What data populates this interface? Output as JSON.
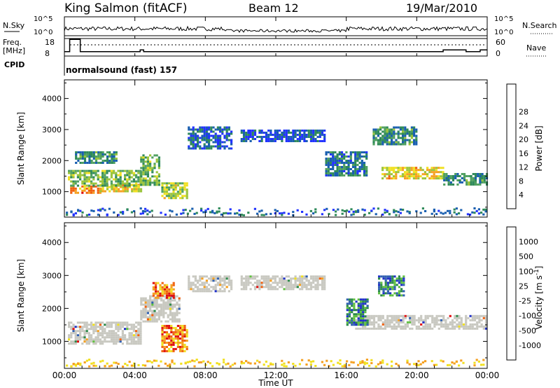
{
  "header": {
    "title": "King Salmon (fitACF)",
    "beam": "Beam 12",
    "date": "19/Mar/2010"
  },
  "panels": {
    "nsky": {
      "label": "N.Sky",
      "tick_top": "10^5",
      "tick_bottom": "10^0"
    },
    "nsearch": {
      "label": "N.Search",
      "tick_top": "10^5",
      "tick_bottom": "10^0"
    },
    "freq": {
      "label_line1": "Freq.",
      "label_line2": "[MHz]",
      "tick_top": "18",
      "tick_bottom": "8"
    },
    "nave": {
      "label": "Nave",
      "tick_top": "60",
      "tick_bottom": "0"
    },
    "cpid": {
      "label": "CPID",
      "mode": "normalsound (fast) 157"
    }
  },
  "chart_data": [
    {
      "type": "heatmap",
      "name": "power-panel",
      "ylabel": "Slant Range [km]",
      "ylim": [
        180,
        4600
      ],
      "yticks": [
        1000,
        2000,
        3000,
        4000
      ],
      "x_tick_labels": [
        "00:00",
        "04:00",
        "08:00",
        "12:00",
        "16:00",
        "20:00",
        "00:00"
      ],
      "x_tick_hours": [
        0,
        4,
        8,
        12,
        16,
        20,
        24
      ],
      "xlim_hours": [
        0,
        24
      ],
      "colorbar": {
        "label": "Power [dB]",
        "tick_labels": [
          "4",
          "8",
          "12",
          "16",
          "20",
          "24",
          "28"
        ],
        "colors": [
          "#2233ff",
          "#1a5fb0",
          "#2f8a5a",
          "#50a060",
          "#9ac43a",
          "#f0e020",
          "#f5a020",
          "#f06010",
          "#e01010"
        ]
      },
      "regions": [
        {
          "x": [
            0.2,
            2.0
          ],
          "y": [
            950,
            1200
          ],
          "level": 0.75
        },
        {
          "x": [
            2.0,
            4.3
          ],
          "y": [
            1000,
            1250
          ],
          "level": 0.62
        },
        {
          "x": [
            0.2,
            4.3
          ],
          "y": [
            1200,
            1700
          ],
          "level": 0.42
        },
        {
          "x": [
            0.6,
            3.0
          ],
          "y": [
            1900,
            2300
          ],
          "level": 0.3
        },
        {
          "x": [
            4.3,
            5.4
          ],
          "y": [
            1200,
            2200
          ],
          "level": 0.4
        },
        {
          "x": [
            5.5,
            7.0
          ],
          "y": [
            800,
            1300
          ],
          "level": 0.5
        },
        {
          "x": [
            7.0,
            9.5
          ],
          "y": [
            2400,
            3100
          ],
          "level": 0.15
        },
        {
          "x": [
            10.0,
            14.8
          ],
          "y": [
            2600,
            3000
          ],
          "level": 0.12
        },
        {
          "x": [
            14.8,
            17.2
          ],
          "y": [
            1500,
            2300
          ],
          "level": 0.25
        },
        {
          "x": [
            18.0,
            21.5
          ],
          "y": [
            1400,
            1800
          ],
          "level": 0.62
        },
        {
          "x": [
            21.5,
            24.0
          ],
          "y": [
            1200,
            1600
          ],
          "level": 0.3
        },
        {
          "x": [
            17.5,
            20.0
          ],
          "y": [
            2500,
            3100
          ],
          "level": 0.3
        }
      ]
    },
    {
      "type": "heatmap",
      "name": "velocity-panel",
      "ylabel": "Slant Range [km]",
      "ylim": [
        180,
        4600
      ],
      "yticks": [
        1000,
        2000,
        3000,
        4000
      ],
      "x_tick_labels": [
        "00:00",
        "04:00",
        "08:00",
        "12:00",
        "16:00",
        "20:00",
        "00:00"
      ],
      "x_tick_hours": [
        0,
        4,
        8,
        12,
        16,
        20,
        24
      ],
      "xlim_hours": [
        0,
        24
      ],
      "xlabel": "Time UT",
      "colorbar": {
        "label": "Velocity [m s^-1]",
        "tick_labels": [
          "1000",
          "500",
          "100",
          "25",
          "-25",
          "-100",
          "-500",
          "-1000"
        ],
        "colors": [
          "#2030c8",
          "#3060b0",
          "#2c8a4a",
          "#60c040",
          "#c8c8c0",
          "#f0e020",
          "#f5a020",
          "#f06010",
          "#e01010"
        ]
      },
      "regions": [
        {
          "x": [
            0.2,
            4.3
          ],
          "y": [
            900,
            1600
          ],
          "vel": "ground"
        },
        {
          "x": [
            4.3,
            6.5
          ],
          "y": [
            1600,
            2400
          ],
          "vel": "ground"
        },
        {
          "x": [
            7.0,
            9.5
          ],
          "y": [
            2500,
            3000
          ],
          "vel": "ground"
        },
        {
          "x": [
            10.0,
            14.8
          ],
          "y": [
            2600,
            3000
          ],
          "vel": "ground"
        },
        {
          "x": [
            16.5,
            24.0
          ],
          "y": [
            1400,
            1800
          ],
          "vel": "ground"
        },
        {
          "x": [
            5.5,
            7.0
          ],
          "y": [
            700,
            1500
          ],
          "vel": "neg"
        },
        {
          "x": [
            5.0,
            6.2
          ],
          "y": [
            2300,
            2800
          ],
          "vel": "neg"
        },
        {
          "x": [
            16.0,
            17.2
          ],
          "y": [
            1500,
            2300
          ],
          "vel": "pos"
        },
        {
          "x": [
            17.8,
            19.2
          ],
          "y": [
            2400,
            3000
          ],
          "vel": "pos"
        }
      ]
    }
  ]
}
